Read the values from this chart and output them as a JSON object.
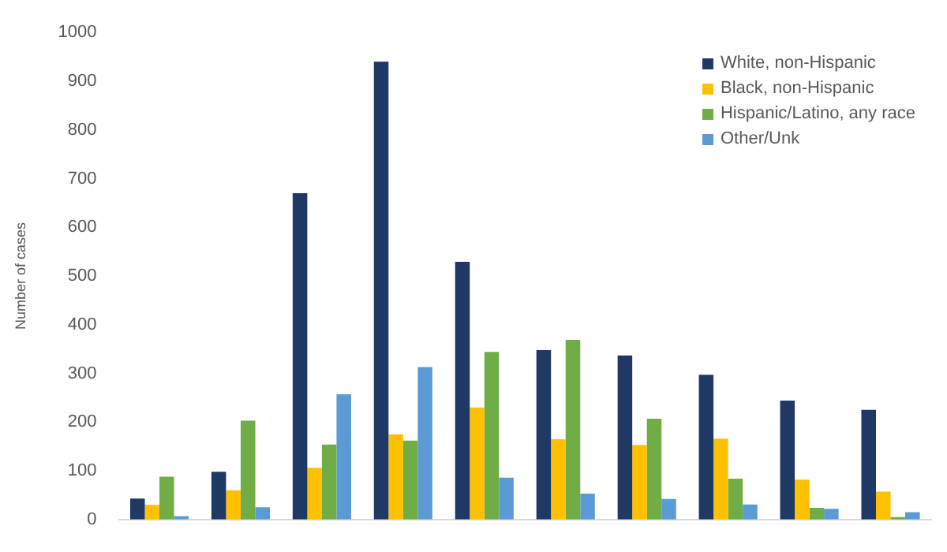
{
  "chart_data": {
    "type": "bar",
    "ylabel": "Number of cases",
    "categories": [
      null,
      null,
      null,
      null,
      null,
      null,
      null,
      null,
      null,
      null
    ],
    "series": [
      {
        "name": "White, non-Hispanic",
        "color": "#203864",
        "values": [
          43,
          98,
          670,
          940,
          529,
          348,
          337,
          297,
          244,
          225
        ]
      },
      {
        "name": "Black, non-Hispanic",
        "color": "#ffc000",
        "values": [
          30,
          60,
          106,
          175,
          230,
          165,
          153,
          166,
          82,
          57
        ]
      },
      {
        "name": "Hispanic/Latino, any race",
        "color": "#70ad47",
        "values": [
          88,
          203,
          154,
          162,
          344,
          369,
          207,
          84,
          24,
          5
        ]
      },
      {
        "name": "Other/Unk",
        "color": "#5b9bd5",
        "values": [
          7,
          25,
          257,
          313,
          86,
          53,
          42,
          31,
          22,
          15
        ]
      }
    ],
    "ylim": [
      0,
      1000
    ],
    "yticks": [
      0,
      100,
      200,
      300,
      400,
      500,
      600,
      700,
      800,
      900,
      1000
    ],
    "grid": false,
    "legend": "top right"
  }
}
